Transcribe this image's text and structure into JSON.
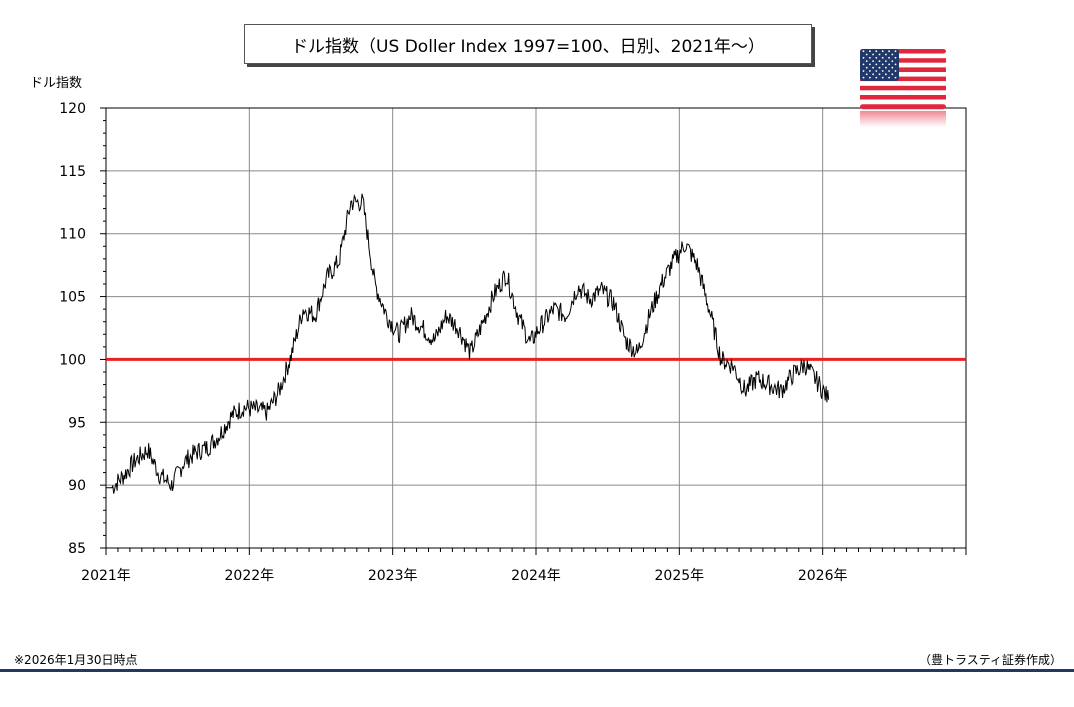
{
  "chart_data": {
    "type": "line",
    "title": "ドル指数（US Doller Index 1997=100、日別、2021年～）",
    "ylabel": "ドル指数",
    "xlabel": "",
    "x_tick_labels": [
      "2021年",
      "2022年",
      "2023年",
      "2024年",
      "2025年",
      "2026年"
    ],
    "y_tick_labels": [
      "85",
      "90",
      "95",
      "100",
      "105",
      "110",
      "115",
      "120"
    ],
    "ylim": [
      85,
      120
    ],
    "xlim": [
      "2021-01",
      "2027-01"
    ],
    "grid": true,
    "reference_line": {
      "y": 100,
      "color": "#e8231f"
    },
    "series_color": "#000000",
    "series": [
      {
        "x": [
          "2021-01",
          "2021-02",
          "2021-03",
          "2021-04",
          "2021-05",
          "2021-06",
          "2021-07",
          "2021-08",
          "2021-09",
          "2021-10",
          "2021-11",
          "2021-12",
          "2022-01",
          "2022-02",
          "2022-03",
          "2022-04",
          "2022-05",
          "2022-06",
          "2022-07",
          "2022-08",
          "2022-09",
          "2022-10",
          "2022-11",
          "2022-12",
          "2023-01",
          "2023-02",
          "2023-03",
          "2023-04",
          "2023-05",
          "2023-06",
          "2023-07",
          "2023-08",
          "2023-09",
          "2023-10",
          "2023-11",
          "2023-12",
          "2024-01",
          "2024-02",
          "2024-03",
          "2024-04",
          "2024-05",
          "2024-06",
          "2024-07",
          "2024-08",
          "2024-09",
          "2024-10",
          "2024-11",
          "2024-12",
          "2025-01",
          "2025-02",
          "2025-03",
          "2025-04",
          "2025-05",
          "2025-06",
          "2025-07",
          "2025-08",
          "2025-09",
          "2025-10",
          "2025-11",
          "2025-12",
          "2026-01"
        ],
        "values": [
          89.8,
          90.8,
          92.0,
          92.8,
          90.8,
          90.0,
          91.8,
          92.6,
          93.0,
          94.0,
          95.5,
          96.2,
          96.0,
          95.8,
          97.5,
          100.3,
          104.0,
          103.5,
          106.5,
          107.8,
          112.5,
          112.5,
          106.0,
          103.5,
          102.0,
          103.5,
          102.5,
          101.5,
          103.5,
          102.5,
          100.5,
          102.8,
          105.2,
          106.8,
          103.5,
          101.3,
          102.8,
          104.0,
          103.5,
          105.8,
          104.8,
          105.5,
          104.5,
          101.5,
          100.5,
          103.5,
          106.0,
          107.8,
          109.2,
          107.5,
          104.0,
          100.0,
          99.5,
          97.5,
          98.5,
          98.0,
          97.5,
          98.8,
          99.6,
          98.3,
          96.8
        ]
      }
    ]
  },
  "footnote": "※2026年1月30日時点",
  "source": "（豊トラスティ証券作成）",
  "flag": {
    "name": "us-flag-icon",
    "stripe_red": "#e0283c",
    "canton_blue": "#22386b"
  }
}
